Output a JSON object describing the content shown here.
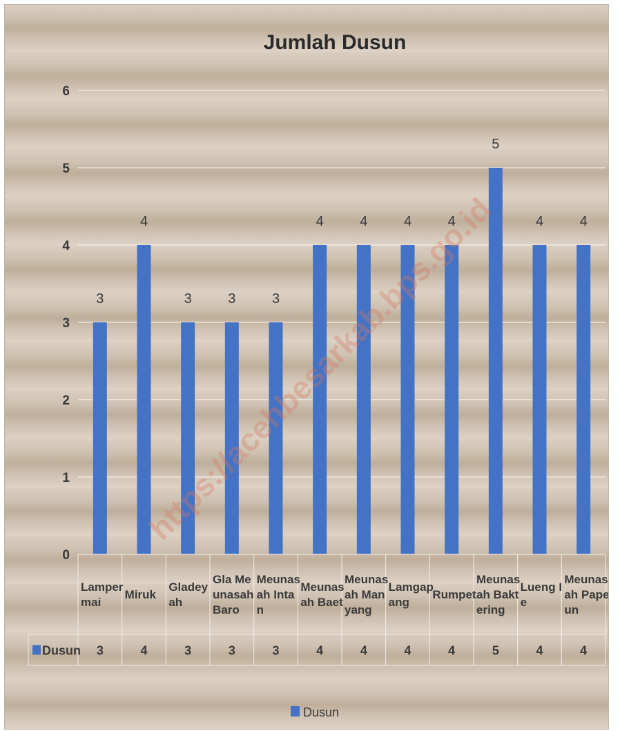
{
  "chart_data": {
    "type": "bar",
    "title": "Jumlah Dusun",
    "categories": [
      [
        "Lamper",
        "mai"
      ],
      [
        "Miruk"
      ],
      [
        "Gladey",
        "ah"
      ],
      [
        "Gla Me",
        "unasah",
        "Baro"
      ],
      [
        "Meunas",
        "ah Inta",
        "n"
      ],
      [
        "Meunas",
        "ah Baet"
      ],
      [
        "Meunas",
        "ah Man",
        "yang"
      ],
      [
        "Lamgap",
        "ang"
      ],
      [
        "Rumpet"
      ],
      [
        "Meunas",
        "ah Bakt",
        "ering"
      ],
      [
        "Lueng I",
        "e"
      ],
      [
        "Meunas",
        "ah Pape",
        "un"
      ]
    ],
    "series": [
      {
        "name": "Dusun",
        "values": [
          3,
          4,
          3,
          3,
          3,
          4,
          4,
          4,
          4,
          5,
          4,
          4
        ],
        "color": "#4472c4"
      }
    ],
    "y_ticks": [
      "0",
      "1",
      "2",
      "3",
      "3",
      "4",
      "5",
      "6"
    ],
    "ylim": [
      0,
      6
    ],
    "grid": true,
    "data_table": true,
    "legend_position": "bottom"
  },
  "watermark": "https://acehbesarkab.bps.go.id"
}
